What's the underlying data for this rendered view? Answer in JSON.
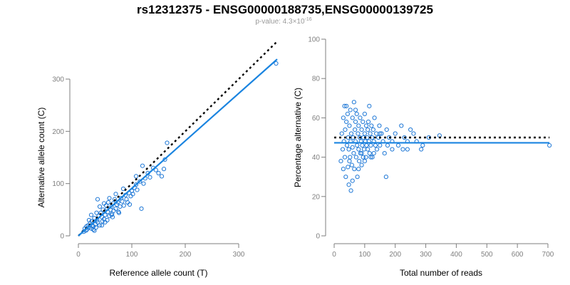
{
  "title": "rs12312375 - ENSG00000188735,ENSG00000139725",
  "subtitle": {
    "prefix": "p-value: 4.3×10",
    "exponent": "-16"
  },
  "chart_data": [
    {
      "type": "scatter",
      "xlabel": "Reference allele count (T)",
      "ylabel": "Alternative allele count (C)",
      "xlim": [
        0,
        370
      ],
      "ylim": [
        0,
        345
      ],
      "xticks": [
        0,
        100,
        200,
        300
      ],
      "yticks": [
        0,
        100,
        200,
        300
      ],
      "fit_line": {
        "x": [
          0,
          372
        ],
        "y": [
          0,
          338
        ]
      },
      "reference_line": {
        "x": [
          0,
          372
        ],
        "y": [
          0,
          372
        ]
      },
      "points": [
        [
          10,
          8
        ],
        [
          12,
          14
        ],
        [
          14,
          10
        ],
        [
          15,
          18
        ],
        [
          16,
          12
        ],
        [
          18,
          20
        ],
        [
          20,
          16
        ],
        [
          22,
          24
        ],
        [
          24,
          14
        ],
        [
          25,
          28
        ],
        [
          26,
          20
        ],
        [
          28,
          18
        ],
        [
          30,
          34
        ],
        [
          32,
          22
        ],
        [
          33,
          16
        ],
        [
          35,
          30
        ],
        [
          36,
          26
        ],
        [
          38,
          38
        ],
        [
          40,
          20
        ],
        [
          42,
          44
        ],
        [
          44,
          36
        ],
        [
          45,
          28
        ],
        [
          46,
          50
        ],
        [
          48,
          32
        ],
        [
          50,
          40
        ],
        [
          52,
          58
        ],
        [
          54,
          30
        ],
        [
          55,
          46
        ],
        [
          56,
          64
        ],
        [
          58,
          38
        ],
        [
          60,
          50
        ],
        [
          62,
          56
        ],
        [
          63,
          42
        ],
        [
          65,
          62
        ],
        [
          66,
          48
        ],
        [
          68,
          70
        ],
        [
          70,
          52
        ],
        [
          72,
          60
        ],
        [
          74,
          64
        ],
        [
          75,
          46
        ],
        [
          78,
          56
        ],
        [
          80,
          72
        ],
        [
          82,
          66
        ],
        [
          85,
          58
        ],
        [
          88,
          78
        ],
        [
          90,
          70
        ],
        [
          92,
          64
        ],
        [
          95,
          82
        ],
        [
          98,
          76
        ],
        [
          100,
          86
        ],
        [
          102,
          80
        ],
        [
          105,
          92
        ],
        [
          108,
          98
        ],
        [
          110,
          88
        ],
        [
          115,
          104
        ],
        [
          118,
          52
        ],
        [
          120,
          134
        ],
        [
          122,
          100
        ],
        [
          125,
          110
        ],
        [
          130,
          120
        ],
        [
          134,
          112
        ],
        [
          140,
          130
        ],
        [
          145,
          126
        ],
        [
          150,
          120
        ],
        [
          156,
          114
        ],
        [
          160,
          128
        ],
        [
          162,
          146
        ],
        [
          166,
          178
        ],
        [
          370,
          330
        ],
        [
          20,
          30
        ],
        [
          28,
          12
        ],
        [
          34,
          44
        ],
        [
          40,
          56
        ],
        [
          44,
          20
        ],
        [
          50,
          26
        ],
        [
          58,
          72
        ],
        [
          64,
          36
        ],
        [
          36,
          70
        ],
        [
          30,
          10
        ],
        [
          24,
          40
        ],
        [
          48,
          62
        ],
        [
          54,
          52
        ],
        [
          62,
          40
        ],
        [
          70,
          80
        ],
        [
          76,
          44
        ],
        [
          84,
          90
        ],
        [
          96,
          60
        ],
        [
          108,
          114
        ]
      ]
    },
    {
      "type": "scatter",
      "xlabel": "Total number of reads",
      "ylabel": "Percentage alternative (C)",
      "xlim": [
        0,
        700
      ],
      "ylim": [
        0,
        100
      ],
      "xticks": [
        0,
        100,
        200,
        300,
        400,
        500,
        600,
        700
      ],
      "yticks": [
        0,
        20,
        40,
        60,
        80,
        100
      ],
      "fit_line": {
        "x": [
          0,
          705
        ],
        "y": [
          47.3,
          47.3
        ]
      },
      "reference_line": {
        "x": [
          0,
          705
        ],
        "y": [
          50,
          50
        ]
      },
      "points": [
        [
          22,
          38
        ],
        [
          25,
          52
        ],
        [
          28,
          44
        ],
        [
          30,
          60
        ],
        [
          32,
          48
        ],
        [
          34,
          66
        ],
        [
          35,
          40
        ],
        [
          36,
          54
        ],
        [
          38,
          30
        ],
        [
          40,
          58
        ],
        [
          42,
          46
        ],
        [
          44,
          62
        ],
        [
          45,
          35
        ],
        [
          46,
          50
        ],
        [
          48,
          26
        ],
        [
          48,
          44
        ],
        [
          50,
          56
        ],
        [
          52,
          40
        ],
        [
          53,
          64
        ],
        [
          54,
          48
        ],
        [
          55,
          23
        ],
        [
          56,
          52
        ],
        [
          58,
          36
        ],
        [
          60,
          60
        ],
        [
          60,
          45
        ],
        [
          62,
          50
        ],
        [
          64,
          42
        ],
        [
          65,
          68
        ],
        [
          66,
          34
        ],
        [
          68,
          54
        ],
        [
          70,
          48
        ],
        [
          70,
          58
        ],
        [
          72,
          40
        ],
        [
          74,
          62
        ],
        [
          75,
          46
        ],
        [
          76,
          30
        ],
        [
          78,
          52
        ],
        [
          80,
          44
        ],
        [
          80,
          56
        ],
        [
          82,
          38
        ],
        [
          84,
          50
        ],
        [
          85,
          60
        ],
        [
          86,
          42
        ],
        [
          88,
          48
        ],
        [
          90,
          54
        ],
        [
          90,
          36
        ],
        [
          92,
          46
        ],
        [
          94,
          58
        ],
        [
          95,
          40
        ],
        [
          96,
          50
        ],
        [
          98,
          44
        ],
        [
          100,
          52
        ],
        [
          100,
          62
        ],
        [
          102,
          48
        ],
        [
          104,
          40
        ],
        [
          105,
          56
        ],
        [
          106,
          46
        ],
        [
          108,
          50
        ],
        [
          110,
          44
        ],
        [
          112,
          58
        ],
        [
          114,
          48
        ],
        [
          115,
          66
        ],
        [
          116,
          42
        ],
        [
          118,
          52
        ],
        [
          120,
          46
        ],
        [
          122,
          56
        ],
        [
          124,
          50
        ],
        [
          125,
          40
        ],
        [
          128,
          54
        ],
        [
          130,
          48
        ],
        [
          132,
          60
        ],
        [
          135,
          46
        ],
        [
          138,
          52
        ],
        [
          140,
          44
        ],
        [
          145,
          50
        ],
        [
          148,
          56
        ],
        [
          150,
          46
        ],
        [
          155,
          52
        ],
        [
          160,
          48
        ],
        [
          165,
          42
        ],
        [
          170,
          30
        ],
        [
          172,
          54
        ],
        [
          175,
          46
        ],
        [
          180,
          50
        ],
        [
          190,
          44
        ],
        [
          200,
          52
        ],
        [
          210,
          46
        ],
        [
          220,
          56
        ],
        [
          225,
          44
        ],
        [
          230,
          50
        ],
        [
          240,
          48
        ],
        [
          250,
          54
        ],
        [
          260,
          52
        ],
        [
          270,
          48
        ],
        [
          285,
          44
        ],
        [
          290,
          46
        ],
        [
          310,
          50
        ],
        [
          345,
          51
        ],
        [
          705,
          46
        ],
        [
          30,
          34
        ],
        [
          40,
          66
        ],
        [
          50,
          38
        ],
        [
          60,
          28
        ],
        [
          70,
          64
        ],
        [
          80,
          34
        ],
        [
          90,
          42
        ],
        [
          100,
          38
        ],
        [
          110,
          54
        ],
        [
          120,
          40
        ],
        [
          130,
          42
        ],
        [
          150,
          52
        ],
        [
          190,
          48
        ],
        [
          240,
          44
        ]
      ]
    }
  ]
}
